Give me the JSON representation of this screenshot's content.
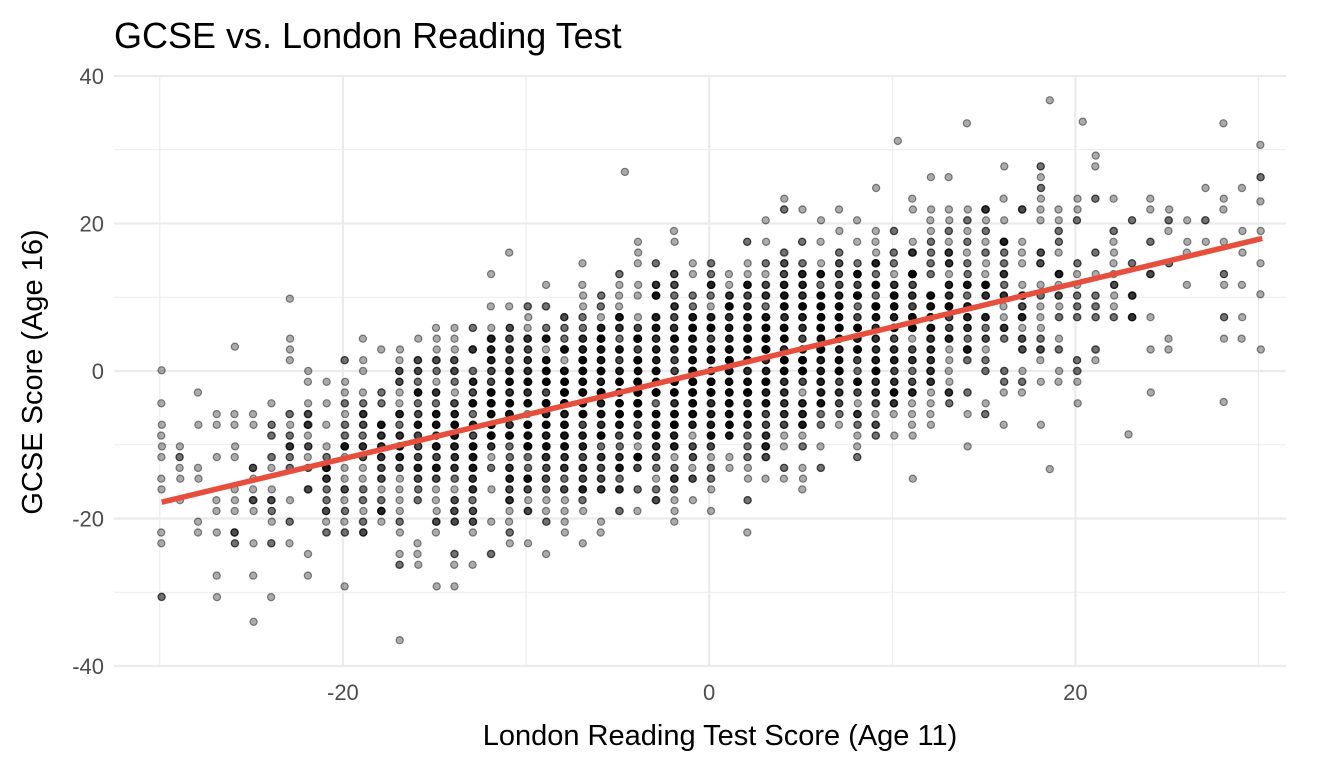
{
  "chart_data": {
    "type": "scatter",
    "title": "GCSE vs. London Reading Test",
    "xlabel": "London Reading Test Score (Age 11)",
    "ylabel": "GCSE Score (Age 16)",
    "xlim": [
      -32.5,
      31.5
    ],
    "ylim": [
      -40,
      40
    ],
    "x_ticks": [
      -20,
      0,
      20
    ],
    "y_ticks": [
      -40,
      -20,
      0,
      20,
      40
    ],
    "x_tick_labels": [
      "-20",
      "0",
      "20"
    ],
    "y_tick_labels": [
      "-40",
      "-20",
      "0",
      "20",
      "40"
    ],
    "grid": true,
    "legend": "none",
    "point_color": "#000000",
    "point_alpha": 0.33,
    "fit_color": "#e84e3c",
    "fit": {
      "method": "linear",
      "intercept": 0.0,
      "slope": 0.595,
      "x_range": [
        -29.9,
        30.2
      ]
    },
    "x_values": [
      -29.9,
      -28.9,
      -27.9,
      -26.9,
      -25.9,
      -24.9,
      -23.9,
      -22.9,
      -21.9,
      -20.9,
      -19.9,
      -18.9,
      -17.9,
      -16.9,
      -15.9,
      -14.9,
      -13.9,
      -12.9,
      -11.9,
      -10.9,
      -9.9,
      -8.9,
      -7.9,
      -6.9,
      -5.9,
      -4.9,
      -3.9,
      -2.9,
      -1.9,
      -0.9,
      0.1,
      1.1,
      2.1,
      3.1,
      4.1,
      5.1,
      6.1,
      7.1,
      8.1,
      9.1,
      10.1,
      11.1,
      12.1,
      13.1,
      14.1,
      15.1,
      16.1,
      17.1,
      18.1,
      19.1,
      20.1,
      21.1,
      22.1,
      23.1,
      24.1,
      25.1,
      26.1,
      27.1,
      28.1,
      29.1,
      30.1
    ],
    "x_counts": [
      10,
      6,
      6,
      8,
      12,
      14,
      18,
      20,
      22,
      26,
      30,
      34,
      38,
      44,
      50,
      56,
      62,
      70,
      76,
      82,
      86,
      90,
      92,
      94,
      96,
      98,
      100,
      100,
      100,
      100,
      100,
      100,
      98,
      96,
      94,
      92,
      90,
      86,
      82,
      78,
      72,
      66,
      60,
      54,
      48,
      42,
      36,
      32,
      28,
      24,
      20,
      16,
      14,
      12,
      10,
      8,
      4,
      4,
      10,
      6,
      6
    ],
    "y_residual_sd": 7.2,
    "notable_points": [
      {
        "x": 18.6,
        "y": 36.7
      },
      {
        "x": 20.4,
        "y": 33.8
      },
      {
        "x": 10.3,
        "y": 31.2
      },
      {
        "x": -16.9,
        "y": -36.5
      },
      {
        "x": -29.9,
        "y": -30.6
      },
      {
        "x": -29.9,
        "y": 0.1
      },
      {
        "x": -25.9,
        "y": 3.3
      },
      {
        "x": -22.9,
        "y": 9.8
      },
      {
        "x": -4.6,
        "y": 27.0
      },
      {
        "x": 30.1,
        "y": 23.0
      },
      {
        "x": 30.1,
        "y": 10.4
      },
      {
        "x": 28.1,
        "y": -4.2
      },
      {
        "x": 22.9,
        "y": -8.6
      },
      {
        "x": 18.6,
        "y": -13.3
      }
    ]
  }
}
